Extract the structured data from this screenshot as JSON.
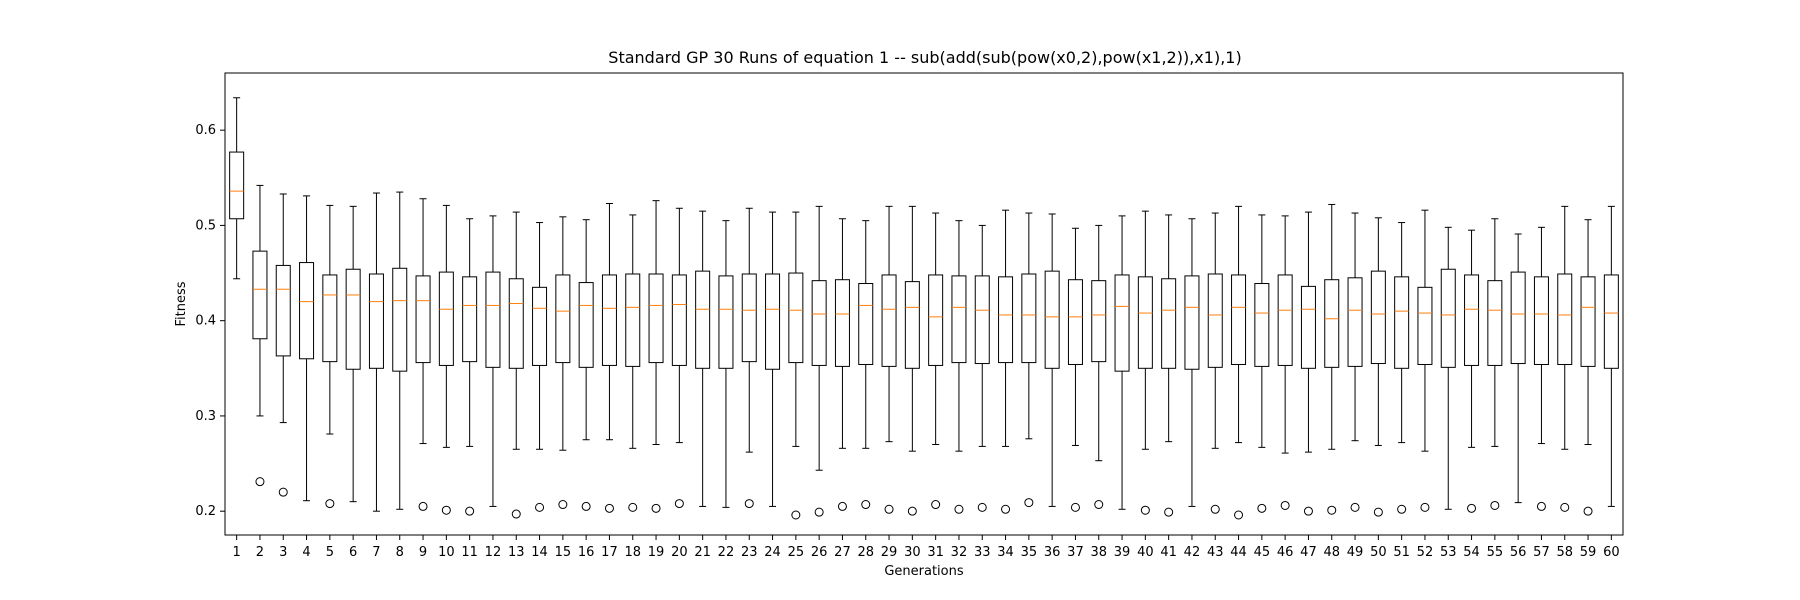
{
  "chart_data": {
    "type": "boxplot",
    "title": "Standard GP 30 Runs of equation 1 -- sub(add(sub(pow(x0,2),pow(x1,2)),x1),1)",
    "xlabel": "Generations",
    "ylabel": "Fitness",
    "ylim": [
      0.175,
      0.66
    ],
    "yticks": [
      "0.2",
      "0.3",
      "0.4",
      "0.5",
      "0.6"
    ],
    "grid": false,
    "colors": {
      "box": "#000000",
      "median": "#ff7f0e",
      "whisker": "#000000",
      "flier": "#000000"
    },
    "categories": [
      "1",
      "2",
      "3",
      "4",
      "5",
      "6",
      "7",
      "8",
      "9",
      "10",
      "11",
      "12",
      "13",
      "14",
      "15",
      "16",
      "17",
      "18",
      "19",
      "20",
      "21",
      "22",
      "23",
      "24",
      "25",
      "26",
      "27",
      "28",
      "29",
      "30",
      "31",
      "32",
      "33",
      "34",
      "35",
      "36",
      "37",
      "38",
      "39",
      "40",
      "41",
      "42",
      "43",
      "44",
      "45",
      "46",
      "47",
      "48",
      "49",
      "50",
      "51",
      "52",
      "53",
      "54",
      "55",
      "56",
      "57",
      "58",
      "59",
      "60"
    ],
    "boxes": [
      {
        "whislo": 0.444,
        "q1": 0.507,
        "med": 0.536,
        "q3": 0.577,
        "whishi": 0.634,
        "fliers": []
      },
      {
        "whislo": 0.3,
        "q1": 0.381,
        "med": 0.433,
        "q3": 0.473,
        "whishi": 0.542,
        "fliers": [
          0.231
        ]
      },
      {
        "whislo": 0.293,
        "q1": 0.363,
        "med": 0.433,
        "q3": 0.458,
        "whishi": 0.533,
        "fliers": [
          0.22
        ]
      },
      {
        "whislo": 0.211,
        "q1": 0.36,
        "med": 0.42,
        "q3": 0.461,
        "whishi": 0.531,
        "fliers": []
      },
      {
        "whislo": 0.281,
        "q1": 0.357,
        "med": 0.427,
        "q3": 0.448,
        "whishi": 0.521,
        "fliers": [
          0.208
        ]
      },
      {
        "whislo": 0.21,
        "q1": 0.349,
        "med": 0.427,
        "q3": 0.454,
        "whishi": 0.52,
        "fliers": []
      },
      {
        "whislo": 0.2,
        "q1": 0.35,
        "med": 0.42,
        "q3": 0.449,
        "whishi": 0.534,
        "fliers": []
      },
      {
        "whislo": 0.202,
        "q1": 0.347,
        "med": 0.421,
        "q3": 0.455,
        "whishi": 0.535,
        "fliers": []
      },
      {
        "whislo": 0.271,
        "q1": 0.356,
        "med": 0.421,
        "q3": 0.447,
        "whishi": 0.528,
        "fliers": [
          0.205
        ]
      },
      {
        "whislo": 0.267,
        "q1": 0.353,
        "med": 0.412,
        "q3": 0.451,
        "whishi": 0.521,
        "fliers": [
          0.201
        ]
      },
      {
        "whislo": 0.268,
        "q1": 0.357,
        "med": 0.416,
        "q3": 0.446,
        "whishi": 0.507,
        "fliers": [
          0.2
        ]
      },
      {
        "whislo": 0.205,
        "q1": 0.351,
        "med": 0.416,
        "q3": 0.451,
        "whishi": 0.51,
        "fliers": []
      },
      {
        "whislo": 0.265,
        "q1": 0.35,
        "med": 0.418,
        "q3": 0.444,
        "whishi": 0.514,
        "fliers": [
          0.197
        ]
      },
      {
        "whislo": 0.265,
        "q1": 0.353,
        "med": 0.413,
        "q3": 0.435,
        "whishi": 0.503,
        "fliers": [
          0.204
        ]
      },
      {
        "whislo": 0.264,
        "q1": 0.356,
        "med": 0.41,
        "q3": 0.448,
        "whishi": 0.509,
        "fliers": [
          0.207
        ]
      },
      {
        "whislo": 0.275,
        "q1": 0.351,
        "med": 0.416,
        "q3": 0.44,
        "whishi": 0.506,
        "fliers": [
          0.205
        ]
      },
      {
        "whislo": 0.275,
        "q1": 0.353,
        "med": 0.413,
        "q3": 0.448,
        "whishi": 0.523,
        "fliers": [
          0.203
        ]
      },
      {
        "whislo": 0.266,
        "q1": 0.352,
        "med": 0.414,
        "q3": 0.449,
        "whishi": 0.511,
        "fliers": [
          0.204
        ]
      },
      {
        "whislo": 0.27,
        "q1": 0.356,
        "med": 0.416,
        "q3": 0.449,
        "whishi": 0.526,
        "fliers": [
          0.203
        ]
      },
      {
        "whislo": 0.272,
        "q1": 0.353,
        "med": 0.417,
        "q3": 0.448,
        "whishi": 0.518,
        "fliers": [
          0.208
        ]
      },
      {
        "whislo": 0.205,
        "q1": 0.35,
        "med": 0.412,
        "q3": 0.452,
        "whishi": 0.515,
        "fliers": []
      },
      {
        "whislo": 0.204,
        "q1": 0.35,
        "med": 0.412,
        "q3": 0.447,
        "whishi": 0.505,
        "fliers": []
      },
      {
        "whislo": 0.262,
        "q1": 0.357,
        "med": 0.411,
        "q3": 0.449,
        "whishi": 0.518,
        "fliers": [
          0.208
        ]
      },
      {
        "whislo": 0.205,
        "q1": 0.349,
        "med": 0.412,
        "q3": 0.449,
        "whishi": 0.514,
        "fliers": []
      },
      {
        "whislo": 0.268,
        "q1": 0.356,
        "med": 0.411,
        "q3": 0.45,
        "whishi": 0.514,
        "fliers": [
          0.196
        ]
      },
      {
        "whislo": 0.243,
        "q1": 0.353,
        "med": 0.407,
        "q3": 0.442,
        "whishi": 0.52,
        "fliers": [
          0.199
        ]
      },
      {
        "whislo": 0.266,
        "q1": 0.352,
        "med": 0.407,
        "q3": 0.443,
        "whishi": 0.507,
        "fliers": [
          0.205
        ]
      },
      {
        "whislo": 0.266,
        "q1": 0.354,
        "med": 0.416,
        "q3": 0.439,
        "whishi": 0.505,
        "fliers": [
          0.207
        ]
      },
      {
        "whislo": 0.273,
        "q1": 0.352,
        "med": 0.412,
        "q3": 0.448,
        "whishi": 0.52,
        "fliers": [
          0.202
        ]
      },
      {
        "whislo": 0.263,
        "q1": 0.35,
        "med": 0.414,
        "q3": 0.441,
        "whishi": 0.52,
        "fliers": [
          0.2
        ]
      },
      {
        "whislo": 0.27,
        "q1": 0.353,
        "med": 0.404,
        "q3": 0.448,
        "whishi": 0.513,
        "fliers": [
          0.207
        ]
      },
      {
        "whislo": 0.263,
        "q1": 0.356,
        "med": 0.414,
        "q3": 0.447,
        "whishi": 0.505,
        "fliers": [
          0.202
        ]
      },
      {
        "whislo": 0.268,
        "q1": 0.355,
        "med": 0.411,
        "q3": 0.447,
        "whishi": 0.5,
        "fliers": [
          0.204
        ]
      },
      {
        "whislo": 0.268,
        "q1": 0.356,
        "med": 0.406,
        "q3": 0.446,
        "whishi": 0.516,
        "fliers": [
          0.202
        ]
      },
      {
        "whislo": 0.276,
        "q1": 0.356,
        "med": 0.406,
        "q3": 0.449,
        "whishi": 0.513,
        "fliers": [
          0.209
        ]
      },
      {
        "whislo": 0.205,
        "q1": 0.35,
        "med": 0.404,
        "q3": 0.452,
        "whishi": 0.512,
        "fliers": []
      },
      {
        "whislo": 0.269,
        "q1": 0.354,
        "med": 0.404,
        "q3": 0.443,
        "whishi": 0.497,
        "fliers": [
          0.204
        ]
      },
      {
        "whislo": 0.253,
        "q1": 0.357,
        "med": 0.406,
        "q3": 0.442,
        "whishi": 0.5,
        "fliers": [
          0.207
        ]
      },
      {
        "whislo": 0.202,
        "q1": 0.347,
        "med": 0.415,
        "q3": 0.448,
        "whishi": 0.51,
        "fliers": []
      },
      {
        "whislo": 0.265,
        "q1": 0.35,
        "med": 0.408,
        "q3": 0.446,
        "whishi": 0.515,
        "fliers": [
          0.201
        ]
      },
      {
        "whislo": 0.273,
        "q1": 0.35,
        "med": 0.411,
        "q3": 0.444,
        "whishi": 0.511,
        "fliers": [
          0.199
        ]
      },
      {
        "whislo": 0.205,
        "q1": 0.349,
        "med": 0.414,
        "q3": 0.447,
        "whishi": 0.507,
        "fliers": []
      },
      {
        "whislo": 0.266,
        "q1": 0.351,
        "med": 0.406,
        "q3": 0.449,
        "whishi": 0.513,
        "fliers": [
          0.202
        ]
      },
      {
        "whislo": 0.272,
        "q1": 0.354,
        "med": 0.414,
        "q3": 0.448,
        "whishi": 0.52,
        "fliers": [
          0.196
        ]
      },
      {
        "whislo": 0.267,
        "q1": 0.352,
        "med": 0.408,
        "q3": 0.439,
        "whishi": 0.511,
        "fliers": [
          0.203
        ]
      },
      {
        "whislo": 0.261,
        "q1": 0.353,
        "med": 0.411,
        "q3": 0.448,
        "whishi": 0.51,
        "fliers": [
          0.206
        ]
      },
      {
        "whislo": 0.262,
        "q1": 0.35,
        "med": 0.412,
        "q3": 0.436,
        "whishi": 0.514,
        "fliers": [
          0.2
        ]
      },
      {
        "whislo": 0.265,
        "q1": 0.351,
        "med": 0.402,
        "q3": 0.443,
        "whishi": 0.522,
        "fliers": [
          0.201
        ]
      },
      {
        "whislo": 0.274,
        "q1": 0.352,
        "med": 0.411,
        "q3": 0.445,
        "whishi": 0.513,
        "fliers": [
          0.204
        ]
      },
      {
        "whislo": 0.269,
        "q1": 0.355,
        "med": 0.407,
        "q3": 0.452,
        "whishi": 0.508,
        "fliers": [
          0.199
        ]
      },
      {
        "whislo": 0.272,
        "q1": 0.35,
        "med": 0.41,
        "q3": 0.446,
        "whishi": 0.503,
        "fliers": [
          0.202
        ]
      },
      {
        "whislo": 0.263,
        "q1": 0.354,
        "med": 0.408,
        "q3": 0.435,
        "whishi": 0.516,
        "fliers": [
          0.204
        ]
      },
      {
        "whislo": 0.202,
        "q1": 0.351,
        "med": 0.406,
        "q3": 0.454,
        "whishi": 0.498,
        "fliers": []
      },
      {
        "whislo": 0.267,
        "q1": 0.353,
        "med": 0.412,
        "q3": 0.448,
        "whishi": 0.495,
        "fliers": [
          0.203
        ]
      },
      {
        "whislo": 0.268,
        "q1": 0.353,
        "med": 0.411,
        "q3": 0.442,
        "whishi": 0.507,
        "fliers": [
          0.206
        ]
      },
      {
        "whislo": 0.209,
        "q1": 0.355,
        "med": 0.407,
        "q3": 0.451,
        "whishi": 0.491,
        "fliers": []
      },
      {
        "whislo": 0.271,
        "q1": 0.354,
        "med": 0.407,
        "q3": 0.446,
        "whishi": 0.498,
        "fliers": [
          0.205
        ]
      },
      {
        "whislo": 0.265,
        "q1": 0.354,
        "med": 0.406,
        "q3": 0.449,
        "whishi": 0.52,
        "fliers": [
          0.204
        ]
      },
      {
        "whislo": 0.27,
        "q1": 0.352,
        "med": 0.414,
        "q3": 0.446,
        "whishi": 0.506,
        "fliers": [
          0.2
        ]
      },
      {
        "whislo": 0.205,
        "q1": 0.35,
        "med": 0.408,
        "q3": 0.448,
        "whishi": 0.52,
        "fliers": []
      }
    ]
  }
}
